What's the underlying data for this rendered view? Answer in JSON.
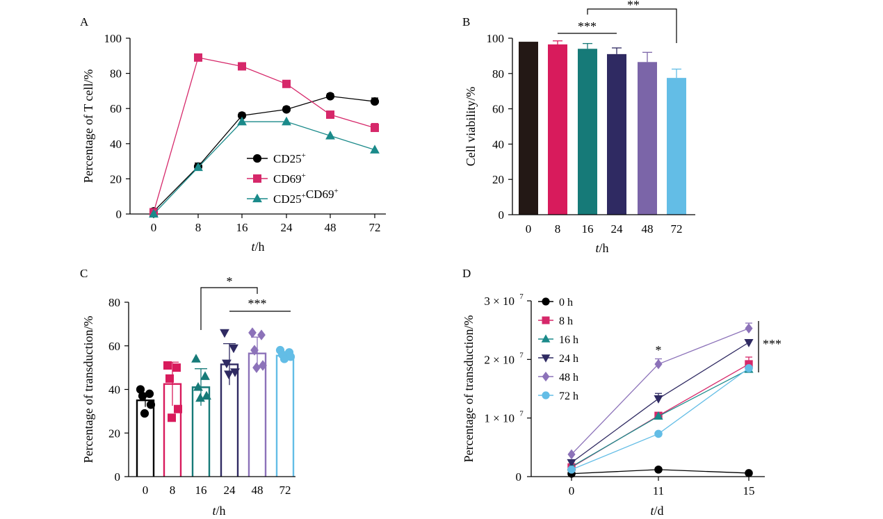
{
  "chart_data": [
    {
      "panel": "A",
      "type": "line",
      "x": [
        "0",
        "8",
        "16",
        "24",
        "48",
        "72"
      ],
      "xlabel": {
        "italic": "t",
        "rest": "/h"
      },
      "ylabel": "Percentage of T cell/%",
      "ylim": [
        0,
        100
      ],
      "yticks": [
        0,
        20,
        40,
        60,
        80,
        100
      ],
      "legend_position": "center",
      "series": [
        {
          "name": "CD25+",
          "legend_parts": [
            [
              "CD25",
              "+"
            ]
          ],
          "color": "#000000",
          "marker": "circle",
          "values": [
            1.5,
            27,
            56,
            59.5,
            67,
            64
          ],
          "err": [
            0.5,
            2,
            1.5,
            1.5,
            1.5,
            2
          ]
        },
        {
          "name": "CD69+",
          "legend_parts": [
            [
              "CD69",
              "+"
            ]
          ],
          "color": "#d6286a",
          "marker": "square",
          "values": [
            1,
            89,
            84,
            74,
            56.5,
            49
          ],
          "err": [
            0,
            0,
            0,
            0,
            2,
            2.5
          ]
        },
        {
          "name": "CD25+CD69+",
          "legend_parts": [
            [
              "CD25",
              "+"
            ],
            [
              "CD69",
              "+"
            ]
          ],
          "color": "#1a8a8a",
          "marker": "triangle",
          "values": [
            0,
            26.5,
            52.5,
            52.5,
            44.5,
            36.5
          ],
          "err": [
            0,
            0,
            0,
            0,
            0,
            0
          ]
        }
      ]
    },
    {
      "panel": "B",
      "type": "bar",
      "categories": [
        "0",
        "8",
        "16",
        "24",
        "48",
        "72"
      ],
      "values": [
        98,
        96.5,
        94,
        91,
        86.5,
        77.5
      ],
      "err": [
        0,
        2,
        3,
        3.5,
        5.5,
        5
      ],
      "colors": [
        "#231815",
        "#d81b5c",
        "#167a78",
        "#2f2a62",
        "#7b65a8",
        "#63bde6"
      ],
      "xlabel": {
        "italic": "t",
        "rest": "/h"
      },
      "ylabel": "Cell viability/%",
      "ylim": [
        0,
        100
      ],
      "yticks": [
        0,
        20,
        40,
        60,
        80,
        100
      ],
      "annotations": [
        {
          "text": "***",
          "from": "8",
          "to": "24"
        },
        {
          "text": "**",
          "from": "16",
          "to": "72"
        }
      ]
    },
    {
      "panel": "C",
      "type": "bar",
      "style": "outline-with-points",
      "categories": [
        "0",
        "8",
        "16",
        "24",
        "48",
        "72"
      ],
      "values": [
        35,
        42.5,
        41,
        51.5,
        56.5,
        55.5
      ],
      "err": [
        3,
        10,
        8.5,
        9.5,
        7.5,
        1
      ],
      "colors": [
        "#000000",
        "#d81b5c",
        "#167a78",
        "#2f2a62",
        "#8c72b9",
        "#63bde6"
      ],
      "points": [
        [
          40,
          38,
          37,
          33,
          29
        ],
        [
          51,
          50,
          45,
          31,
          27
        ],
        [
          54,
          46,
          41,
          37,
          36
        ],
        [
          66,
          59,
          52,
          48,
          47
        ],
        [
          66,
          65,
          58,
          51,
          50
        ],
        [
          58,
          57,
          56,
          55,
          54
        ]
      ],
      "markers": [
        "circle",
        "square",
        "triangle",
        "triangle-down",
        "diamond",
        "circle"
      ],
      "xlabel": {
        "italic": "t",
        "rest": "/h"
      },
      "ylabel": "Percentage of transduction/%",
      "ylim": [
        0,
        80
      ],
      "yticks": [
        0,
        20,
        40,
        60,
        80
      ],
      "annotations": [
        {
          "text": "*",
          "from": "16",
          "to": "48"
        },
        {
          "text": "***",
          "from": "24",
          "to": "72"
        }
      ]
    },
    {
      "panel": "D",
      "type": "line",
      "x": [
        "0",
        "11",
        "15"
      ],
      "xlabel": {
        "italic": "t",
        "rest": "/d"
      },
      "ylabel": "Percentage of transduction/%",
      "ylim": [
        0,
        3
      ],
      "ytick_labels": [
        "0",
        "1 × 10",
        "2 × 10",
        "3 × 10"
      ],
      "ytick_exponent": "7",
      "legend_position": "top-left",
      "series": [
        {
          "name": "0 h",
          "color": "#000000",
          "marker": "circle",
          "values": [
            0.05,
            0.12,
            0.06
          ],
          "err": [
            0,
            0,
            0
          ]
        },
        {
          "name": "8 h",
          "color": "#d6286a",
          "marker": "square",
          "values": [
            0.16,
            1.04,
            1.92
          ],
          "err": [
            0,
            0,
            0.12
          ]
        },
        {
          "name": "16 h",
          "color": "#1a8a8a",
          "marker": "triangle",
          "values": [
            0.17,
            1.03,
            1.83
          ],
          "err": [
            0,
            0,
            0.04
          ]
        },
        {
          "name": "24 h",
          "color": "#2f2a62",
          "marker": "triangle-down",
          "values": [
            0.24,
            1.33,
            2.29
          ],
          "err": [
            0,
            0.09,
            0.05
          ]
        },
        {
          "name": "48 h",
          "color": "#8c72b9",
          "marker": "diamond",
          "values": [
            0.38,
            1.92,
            2.53
          ],
          "err": [
            0,
            0.09,
            0.09
          ]
        },
        {
          "name": "72 h",
          "color": "#63bde6",
          "marker": "circle",
          "values": [
            0.12,
            0.73,
            1.85
          ],
          "err": [
            0,
            0,
            0
          ]
        }
      ],
      "annotations": [
        {
          "text": "*",
          "at": "11"
        },
        {
          "text": "***",
          "at": "15"
        }
      ]
    }
  ]
}
